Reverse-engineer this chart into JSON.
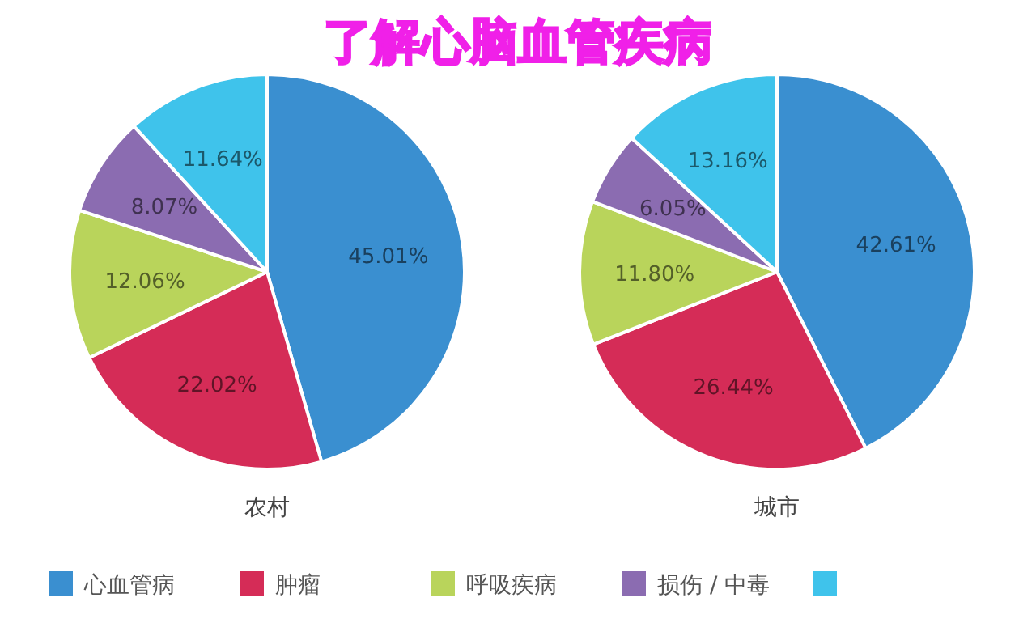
{
  "chart_data": [
    {
      "type": "pie",
      "title": "农村",
      "annotations": [
        "了解心脑血管疾病"
      ],
      "legend": "bottom",
      "categories": [
        "心血管病",
        "肿瘤",
        "呼吸疾病",
        "损伤 / 中毒",
        null
      ],
      "values": [
        45.01,
        22.02,
        12.06,
        8.07,
        11.64
      ],
      "value_labels": [
        "45.01%",
        "22.02%",
        "12.06%",
        "8.07%",
        "11.64%"
      ],
      "colors": [
        "#3a8fd0",
        "#d52c57",
        "#b9d45b",
        "#8b6cb1",
        "#3fc3eb"
      ]
    },
    {
      "type": "pie",
      "title": "城市",
      "categories": [
        null,
        null,
        null,
        null,
        null
      ],
      "values": [
        42.61,
        26.44,
        11.8,
        6.05,
        13.16
      ],
      "value_labels": [
        "42.61%",
        "26.44%",
        "11.80%",
        "6.05%",
        "13.16%"
      ],
      "colors": [
        "#3a8fd0",
        "#d52c57",
        "#b9d45b",
        "#8b6cb1",
        "#3fc3eb"
      ]
    }
  ]
}
